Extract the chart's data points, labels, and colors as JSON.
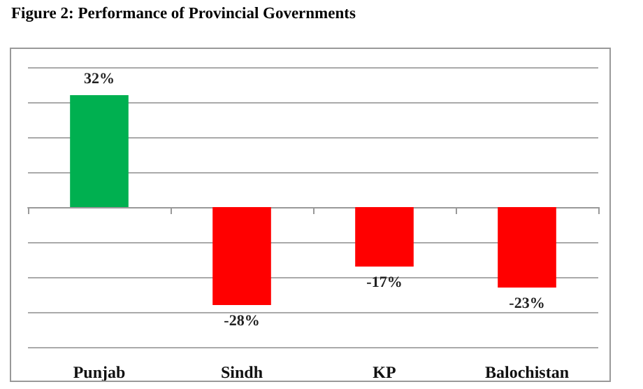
{
  "chart_data": {
    "type": "bar",
    "title": "Figure 2: Performance of Provincial Governments",
    "categories": [
      "Punjab",
      "Sindh",
      "KP",
      "Balochistan"
    ],
    "values": [
      32,
      -28,
      -17,
      -23
    ],
    "colors": [
      "#00b050",
      "#ff0000",
      "#ff0000",
      "#ff0000"
    ],
    "value_labels": [
      "32%",
      "-28%",
      "-17%",
      "-23%"
    ],
    "ylim": [
      -40,
      40
    ],
    "yticks": [
      {
        "value": -40,
        "label": null
      },
      {
        "value": -30,
        "label": null
      },
      {
        "value": -20,
        "label": null
      },
      {
        "value": -10,
        "label": null
      },
      {
        "value": 0,
        "label": null
      },
      {
        "value": 10,
        "label": null
      },
      {
        "value": 20,
        "label": null
      },
      {
        "value": 30,
        "label": null
      },
      {
        "value": 40,
        "label": null
      }
    ],
    "grid": "y",
    "tick_labels": "x"
  }
}
